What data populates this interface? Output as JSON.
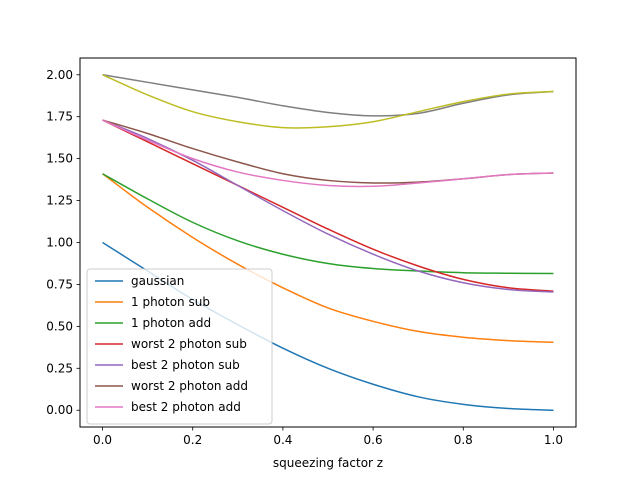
{
  "chart_data": {
    "type": "line",
    "title": "",
    "xlabel": "squeezing factor z",
    "ylabel": "",
    "xlim": [
      -0.05,
      1.05
    ],
    "ylim": [
      -0.1,
      2.1
    ],
    "xticks": [
      0.0,
      0.2,
      0.4,
      0.6,
      0.8,
      1.0
    ],
    "xtick_labels": [
      "0.0",
      "0.2",
      "0.4",
      "0.6",
      "0.8",
      "1.0"
    ],
    "yticks": [
      0.0,
      0.25,
      0.5,
      0.75,
      1.0,
      1.25,
      1.5,
      1.75,
      2.0
    ],
    "ytick_labels": [
      "0.00",
      "0.25",
      "0.50",
      "0.75",
      "1.00",
      "1.25",
      "1.50",
      "1.75",
      "2.00"
    ],
    "grid": false,
    "legend_position": "lower-left",
    "x": [
      0.0,
      0.1,
      0.2,
      0.3,
      0.4,
      0.5,
      0.6,
      0.7,
      0.8,
      0.9,
      1.0
    ],
    "series": [
      {
        "name": "gaussian",
        "color": "#1f77b4",
        "values": [
          1.0,
          0.83,
          0.66,
          0.51,
          0.37,
          0.25,
          0.155,
          0.08,
          0.035,
          0.01,
          0.0
        ]
      },
      {
        "name": "1 photon sub",
        "color": "#ff7f0e",
        "values": [
          1.41,
          1.21,
          1.03,
          0.87,
          0.73,
          0.61,
          0.53,
          0.47,
          0.435,
          0.415,
          0.405
        ]
      },
      {
        "name": "1 photon add",
        "color": "#2ca02c",
        "values": [
          1.41,
          1.26,
          1.12,
          1.01,
          0.93,
          0.875,
          0.845,
          0.83,
          0.82,
          0.817,
          0.815
        ]
      },
      {
        "name": "worst 2 photon sub",
        "color": "#d62728",
        "values": [
          1.73,
          1.6,
          1.47,
          1.34,
          1.21,
          1.08,
          0.96,
          0.86,
          0.78,
          0.73,
          0.71
        ]
      },
      {
        "name": "best 2 photon sub",
        "color": "#9467bd",
        "values": [
          1.73,
          1.62,
          1.49,
          1.34,
          1.19,
          1.05,
          0.93,
          0.83,
          0.76,
          0.72,
          0.705
        ]
      },
      {
        "name": "worst 2 photon add",
        "color": "#8c564b",
        "values": [
          1.73,
          1.65,
          1.56,
          1.48,
          1.41,
          1.37,
          1.355,
          1.36,
          1.38,
          1.405,
          1.414
        ]
      },
      {
        "name": "best 2 photon add",
        "color": "#e377c2",
        "values": [
          1.73,
          1.61,
          1.5,
          1.42,
          1.37,
          1.34,
          1.335,
          1.355,
          1.38,
          1.405,
          1.414
        ]
      },
      {
        "name": "",
        "color": "#7f7f7f",
        "values": [
          2.0,
          1.955,
          1.91,
          1.865,
          1.815,
          1.775,
          1.755,
          1.77,
          1.83,
          1.88,
          1.9
        ]
      },
      {
        "name": "",
        "color": "#bcbd22",
        "values": [
          2.0,
          1.88,
          1.78,
          1.72,
          1.685,
          1.69,
          1.72,
          1.78,
          1.84,
          1.885,
          1.9
        ]
      }
    ]
  }
}
